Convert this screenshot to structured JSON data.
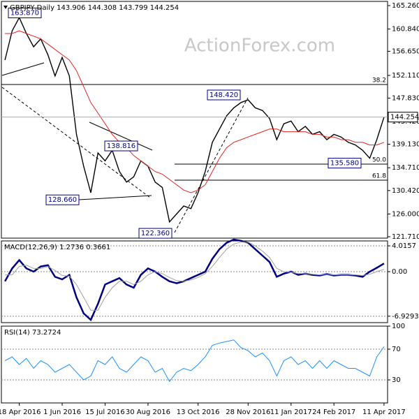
{
  "chart_data": [
    {
      "type": "line",
      "title": "GBPJPY,Daily  143.906 144.308 143.799 144.254",
      "watermark": "ActionForex.com",
      "ylim": [
        121.45,
        166.05
      ],
      "yticks": [
        {
          "value": 165.26,
          "label": "165.260"
        },
        {
          "value": 160.84,
          "label": "160.840"
        },
        {
          "value": 156.65,
          "label": "156.650"
        },
        {
          "value": 152.11,
          "label": "152.110"
        },
        {
          "value": 147.83,
          "label": "147.830"
        },
        {
          "value": 143.42,
          "label": "143.420"
        },
        {
          "value": 139.13,
          "label": "139.130"
        },
        {
          "value": 134.71,
          "label": "134.710"
        },
        {
          "value": 130.42,
          "label": "130.420"
        },
        {
          "value": 126,
          "label": "126.000"
        },
        {
          "value": 121.71,
          "label": "121.710"
        }
      ],
      "grid": false,
      "series": [
        {
          "name": "GBPJPY",
          "color": "#000000",
          "values": [
            155.0,
            160.5,
            163.0,
            160.0,
            157.5,
            159.0,
            156.0,
            152.0,
            155.5,
            152.0,
            141.0,
            135.0,
            130.0,
            137.5,
            136.0,
            138.0,
            134.0,
            132.0,
            133.0,
            136.0,
            135.0,
            132.0,
            131.0,
            124.5,
            126.0,
            127.5,
            127.0,
            130.0,
            134.0,
            139.5,
            142.0,
            144.5,
            146.0,
            147.0,
            147.5,
            146.0,
            145.5,
            144.0,
            140.0,
            143.0,
            143.5,
            141.5,
            142.5,
            141.0,
            141.5,
            140.0,
            141.0,
            140.5,
            139.5,
            139.0,
            138.0,
            136.5,
            140.0,
            144.254
          ]
        },
        {
          "name": "MA",
          "color": "#e8231e",
          "values": [
            160,
            160,
            160.5,
            160,
            159.5,
            159,
            158,
            157,
            156,
            155,
            153,
            150,
            147,
            145,
            143,
            141,
            139.5,
            138.5,
            137,
            136,
            135,
            134,
            133.5,
            132.5,
            131.5,
            130.5,
            130,
            130.5,
            131.5,
            134,
            136.5,
            138.5,
            139.5,
            140,
            140.5,
            141,
            141.5,
            142,
            142,
            141.5,
            141.5,
            141.5,
            141.5,
            141,
            141,
            140.5,
            140.5,
            140,
            140,
            139.5,
            139.5,
            139,
            139,
            139.5
          ]
        }
      ],
      "levels": [
        {
          "value": 150.39,
          "label": "38.2"
        },
        {
          "value": 135.39,
          "label": "50.0"
        },
        {
          "value": 132.37,
          "label": "61.8"
        }
      ],
      "annotations": [
        {
          "value": 163.87,
          "label": "163.870"
        },
        {
          "value": 148.42,
          "label": "148.420"
        },
        {
          "value": 138.816,
          "label": "138.816"
        },
        {
          "value": 128.66,
          "label": "128.660"
        },
        {
          "value": 122.36,
          "label": "122.360"
        },
        {
          "value": 135.58,
          "label": "135.580"
        }
      ]
    },
    {
      "type": "line",
      "title": "MACD(12,26,9) 1.2736 0.3661",
      "ylim": [
        -7.93,
        4.78
      ],
      "yticks": [
        4.0157,
        {
          "value": 0,
          "label": "0.00"
        },
        -6.9293
      ],
      "grid": true,
      "series": [
        {
          "name": "MACD",
          "color": "#000080",
          "values": [
            -1.5,
            0.5,
            1.8,
            0.5,
            0,
            0.8,
            1.0,
            -0.8,
            -1.2,
            -0.5,
            -4,
            -6.5,
            -7.5,
            -5,
            -2,
            -1.5,
            -1,
            -2,
            -2.5,
            -0.5,
            0.5,
            0,
            -0.8,
            -1.5,
            -1.8,
            -1.5,
            -1,
            -0.5,
            0,
            2,
            3.5,
            4.5,
            5,
            4.8,
            4.5,
            3.5,
            2.5,
            1.5,
            -0.8,
            -0.3,
            0,
            -0.5,
            -0.3,
            -0.5,
            -0.6,
            -0.4,
            -0.6,
            -0.5,
            -0.5,
            -0.6,
            -0.8,
            0,
            0.6,
            1.2736
          ]
        },
        {
          "name": "Signal",
          "color": "#a0a0a0",
          "values": [
            -0.5,
            -0.5,
            0.8,
            1.0,
            0.5,
            0.5,
            0.8,
            0.2,
            -0.6,
            -0.7,
            -2,
            -4,
            -6,
            -6,
            -4,
            -2.5,
            -1.5,
            -1.5,
            -2,
            -1.5,
            -0.5,
            0,
            -0.3,
            -0.9,
            -1.4,
            -1.5,
            -1.3,
            -0.9,
            -0.3,
            0.8,
            2.2,
            3.5,
            4.3,
            4.6,
            4.6,
            4.0,
            3.2,
            2.2,
            0.5,
            0,
            -0.1,
            -0.3,
            -0.3,
            -0.4,
            -0.5,
            -0.5,
            -0.5,
            -0.5,
            -0.5,
            -0.5,
            -0.6,
            -0.4,
            0,
            0.3661
          ]
        }
      ]
    },
    {
      "type": "line",
      "title": "RSI(14) 73.2724",
      "ylim": [
        0,
        100
      ],
      "yticks": [
        100,
        70,
        30
      ],
      "grid": true,
      "categories": [
        null,
        null,
        "18 Apr 2016",
        null,
        null,
        null,
        null,
        null,
        "1 Jun 2016",
        null,
        null,
        null,
        null,
        null,
        "15 Jul 2016",
        null,
        null,
        null,
        null,
        null,
        "30 Aug 2016",
        null,
        null,
        null,
        null,
        null,
        null,
        "13 Oct 2016",
        null,
        null,
        null,
        null,
        null,
        null,
        "28 Nov 2016",
        null,
        null,
        null,
        null,
        null,
        "11 Jan 2017",
        null,
        null,
        null,
        null,
        null,
        "24 Feb 2017",
        null,
        null,
        null,
        null,
        null,
        null,
        "11 Apr 2017"
      ],
      "series": [
        {
          "name": "RSI",
          "color": "#1e90ff",
          "values": [
            55,
            60,
            50,
            58,
            45,
            55,
            50,
            40,
            45,
            50,
            40,
            30,
            35,
            55,
            50,
            60,
            45,
            40,
            50,
            60,
            55,
            40,
            45,
            28,
            40,
            45,
            42,
            50,
            60,
            75,
            78,
            80,
            82,
            72,
            68,
            60,
            65,
            55,
            35,
            55,
            60,
            50,
            55,
            45,
            55,
            45,
            55,
            50,
            45,
            45,
            40,
            35,
            60,
            73.2724
          ]
        }
      ]
    }
  ]
}
